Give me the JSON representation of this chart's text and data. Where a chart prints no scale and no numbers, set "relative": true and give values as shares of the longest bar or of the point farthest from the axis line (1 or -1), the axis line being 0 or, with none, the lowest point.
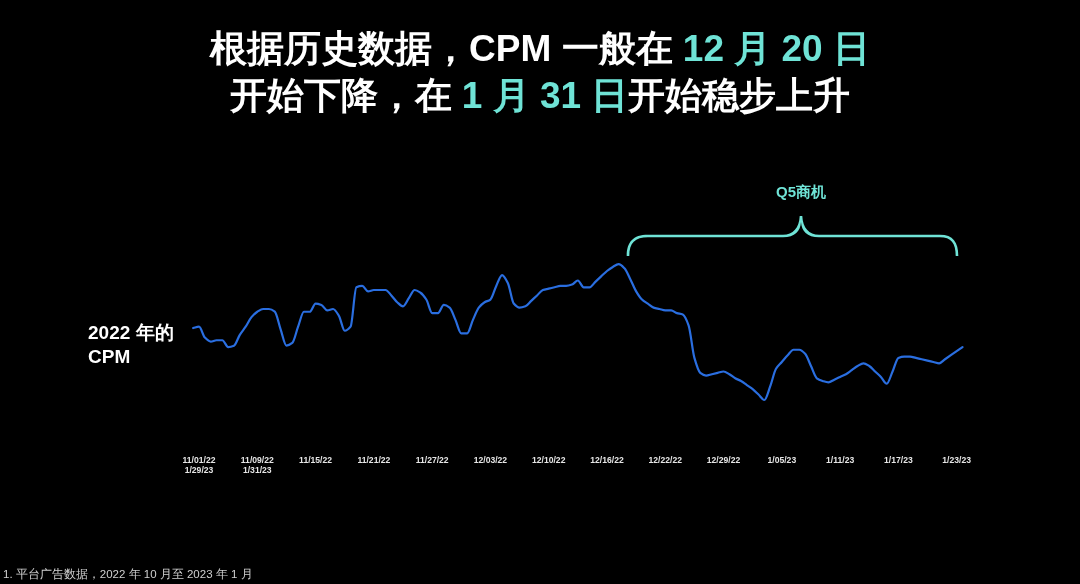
{
  "chart_data": {
    "type": "line",
    "title": "根据历史数据，CPM 一般在 **12 月 20 日**开始下降，在 **1 月 31 日**开始稳步上升",
    "annotations": [
      "Q5商机",
      "1. 平台广告数据，2022 年 10 月至 2023 年 1 月"
    ],
    "relative": true,
    "categories": [
      null,
      "11/01/22\n1/29/23",
      null,
      null,
      null,
      null,
      null,
      null,
      null,
      null,
      null,
      "11/09/22\n1/31/23",
      null,
      null,
      null,
      null,
      null,
      null,
      null,
      null,
      null,
      "11/15/22",
      null,
      null,
      null,
      null,
      null,
      null,
      null,
      null,
      null,
      "11/21/22",
      null,
      null,
      null,
      null,
      null,
      null,
      null,
      null,
      null,
      "11/27/22",
      null,
      null,
      null,
      null,
      null,
      null,
      null,
      null,
      null,
      "12/03/22",
      null,
      null,
      null,
      null,
      null,
      null,
      null,
      null,
      null,
      "12/10/22",
      null,
      null,
      null,
      null,
      null,
      null,
      null,
      null,
      null,
      "12/16/22",
      null,
      null,
      null,
      null,
      null,
      null,
      null,
      null,
      null,
      "12/22/22",
      null,
      null,
      null,
      null,
      null,
      null,
      null,
      null,
      null,
      "12/29/22",
      null,
      null,
      null,
      null,
      null,
      null,
      null,
      null,
      null,
      "1/05/23",
      null,
      null,
      null,
      null,
      null,
      null,
      null,
      null,
      null,
      "1/11/23",
      null,
      null,
      null,
      null,
      null,
      null,
      null,
      null,
      null,
      "1/17/23",
      null,
      null,
      null,
      null,
      null,
      null,
      null,
      null,
      null,
      "1/23/23",
      null
    ],
    "series": [
      {
        "name": "2022 年的 CPM",
        "color": "#2a6ee0",
        "values": [
          0.53,
          0.54,
          0.46,
          0.43,
          0.44,
          0.44,
          0.39,
          0.4,
          0.48,
          0.54,
          0.61,
          0.65,
          0.67,
          0.67,
          0.65,
          0.52,
          0.4,
          0.42,
          0.54,
          0.65,
          0.65,
          0.71,
          0.7,
          0.66,
          0.67,
          0.62,
          0.51,
          0.54,
          0.83,
          0.84,
          0.8,
          0.81,
          0.81,
          0.81,
          0.77,
          0.72,
          0.69,
          0.75,
          0.81,
          0.79,
          0.74,
          0.64,
          0.64,
          0.7,
          0.68,
          0.59,
          0.49,
          0.49,
          0.59,
          0.68,
          0.72,
          0.74,
          0.84,
          0.92,
          0.86,
          0.71,
          0.68,
          0.69,
          0.73,
          0.77,
          0.81,
          0.82,
          0.83,
          0.84,
          0.84,
          0.85,
          0.88,
          0.83,
          0.83,
          0.87,
          0.91,
          0.95,
          0.98,
          1,
          0.97,
          0.89,
          0.8,
          0.74,
          0.71,
          0.68,
          0.67,
          0.66,
          0.66,
          0.64,
          0.63,
          0.55,
          0.31,
          0.2,
          0.18,
          0.19,
          0.2,
          0.21,
          0.19,
          0.16,
          0.14,
          0.11,
          0.08,
          0.04,
          0,
          0.1,
          0.23,
          0.28,
          0.33,
          0.37,
          0.37,
          0.34,
          0.25,
          0.16,
          0.14,
          0.13,
          0.15,
          0.17,
          0.19,
          0.22,
          0.25,
          0.27,
          0.25,
          0.21,
          0.17,
          0.12,
          0.21,
          0.31,
          0.32,
          0.32,
          0.31,
          0.3,
          0.29,
          0.28,
          0.27,
          0.3,
          0.33,
          0.36,
          0.39
        ]
      }
    ]
  }
}
